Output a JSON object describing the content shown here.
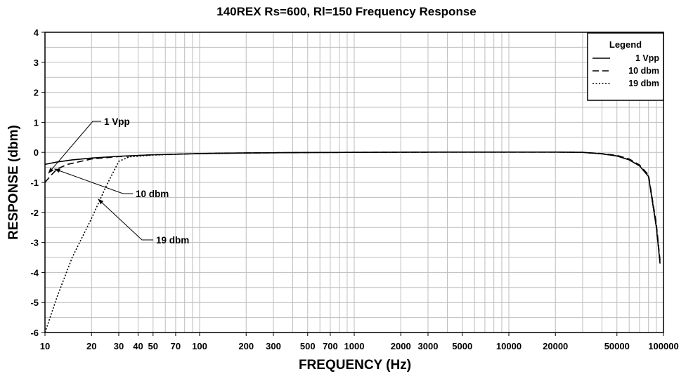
{
  "chart_data": {
    "type": "line",
    "title": "140REX Rs=600, Rl=150 Frequency Response",
    "xlabel": "FREQUENCY (Hz)",
    "ylabel": "RESPONSE (dbm)",
    "xscale": "log",
    "xlim": [
      10,
      100000
    ],
    "ylim": [
      -6,
      4
    ],
    "grid": true,
    "legend": {
      "title": "Legend",
      "position": "top-right"
    },
    "x_ticks": [
      {
        "value": 10,
        "label": "10"
      },
      {
        "value": 20,
        "label": "20"
      },
      {
        "value": 30,
        "label": "30"
      },
      {
        "value": 40,
        "label": "40"
      },
      {
        "value": 50,
        "label": "50"
      },
      {
        "value": 70,
        "label": "70"
      },
      {
        "value": 100,
        "label": "100"
      },
      {
        "value": 200,
        "label": "200"
      },
      {
        "value": 300,
        "label": "300"
      },
      {
        "value": 500,
        "label": "500"
      },
      {
        "value": 700,
        "label": "700"
      },
      {
        "value": 1000,
        "label": "1000"
      },
      {
        "value": 2000,
        "label": "2000"
      },
      {
        "value": 3000,
        "label": "3000"
      },
      {
        "value": 5000,
        "label": "5000"
      },
      {
        "value": 10000,
        "label": "10000"
      },
      {
        "value": 20000,
        "label": "20000"
      },
      {
        "value": 50000,
        "label": "50000"
      },
      {
        "value": 100000,
        "label": "100000"
      }
    ],
    "y_ticks": [
      4,
      3,
      2,
      1,
      0,
      -1,
      -2,
      -3,
      -4,
      -5,
      -6
    ],
    "series": [
      {
        "name": "1 Vpp",
        "dash": "solid",
        "points": [
          [
            10,
            -0.4
          ],
          [
            12,
            -0.32
          ],
          [
            15,
            -0.25
          ],
          [
            20,
            -0.19
          ],
          [
            30,
            -0.13
          ],
          [
            50,
            -0.08
          ],
          [
            100,
            -0.04
          ],
          [
            200,
            -0.02
          ],
          [
            500,
            -0.005
          ],
          [
            1000,
            0
          ],
          [
            2000,
            0.005
          ],
          [
            5000,
            0.01
          ],
          [
            10000,
            0.01
          ],
          [
            20000,
            0.01
          ],
          [
            30000,
            0.0
          ],
          [
            40000,
            -0.05
          ],
          [
            50000,
            -0.12
          ],
          [
            60000,
            -0.25
          ],
          [
            70000,
            -0.45
          ],
          [
            80000,
            -0.8
          ],
          [
            90000,
            -2.5
          ],
          [
            95000,
            -3.7
          ]
        ]
      },
      {
        "name": "10 dbm",
        "dash": "dashed",
        "points": [
          [
            10,
            -1.0
          ],
          [
            11,
            -0.75
          ],
          [
            12,
            -0.55
          ],
          [
            14,
            -0.4
          ],
          [
            20,
            -0.22
          ],
          [
            30,
            -0.14
          ],
          [
            50,
            -0.08
          ],
          [
            100,
            -0.04
          ],
          [
            200,
            -0.02
          ],
          [
            500,
            -0.005
          ],
          [
            1000,
            0
          ],
          [
            2000,
            0.005
          ],
          [
            5000,
            0.01
          ],
          [
            10000,
            0.01
          ],
          [
            20000,
            0.01
          ],
          [
            30000,
            0.0
          ],
          [
            40000,
            -0.04
          ],
          [
            50000,
            -0.1
          ],
          [
            60000,
            -0.22
          ],
          [
            70000,
            -0.42
          ],
          [
            80000,
            -0.75
          ],
          [
            90000,
            -2.4
          ],
          [
            95000,
            -3.6
          ]
        ]
      },
      {
        "name": "19 dbm",
        "dash": "dotted",
        "points": [
          [
            10,
            -6.0
          ],
          [
            12,
            -4.8
          ],
          [
            15,
            -3.5
          ],
          [
            20,
            -2.2
          ],
          [
            25,
            -1.1
          ],
          [
            30,
            -0.3
          ],
          [
            35,
            -0.15
          ],
          [
            50,
            -0.09
          ],
          [
            100,
            -0.04
          ],
          [
            200,
            -0.02
          ],
          [
            500,
            -0.005
          ],
          [
            1000,
            0
          ],
          [
            2000,
            0.005
          ],
          [
            5000,
            0.01
          ],
          [
            10000,
            0.01
          ],
          [
            20000,
            0.01
          ],
          [
            30000,
            0.0
          ],
          [
            40000,
            -0.05
          ],
          [
            50000,
            -0.12
          ],
          [
            60000,
            -0.25
          ],
          [
            70000,
            -0.45
          ],
          [
            80000,
            -0.8
          ],
          [
            90000,
            -2.5
          ],
          [
            95000,
            -3.7
          ]
        ]
      }
    ],
    "annotations": [
      {
        "text": "1 Vpp",
        "series": "1 Vpp",
        "target": [
          10.5,
          -0.7
        ]
      },
      {
        "text": "10 dbm",
        "series": "10 dbm",
        "target": [
          11.5,
          -0.55
        ]
      },
      {
        "text": "19 dbm",
        "series": "19 dbm",
        "target": [
          22,
          -1.55
        ]
      }
    ]
  }
}
